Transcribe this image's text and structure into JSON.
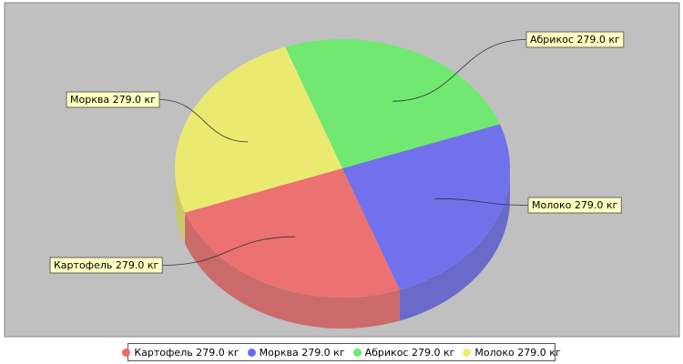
{
  "chart_data": {
    "type": "pie",
    "unit": "кг",
    "slices": [
      {
        "name": "Картофель",
        "value": 279.0,
        "label": "Картофель 279.0 кг",
        "color": "#f06a6a"
      },
      {
        "name": "Морква",
        "value": 279.0,
        "label": "Морква 279.0 кг",
        "color": "#6a6af0"
      },
      {
        "name": "Абрикос",
        "value": 279.0,
        "label": "Абрикос 279.0 кг",
        "color": "#6aeb6a"
      },
      {
        "name": "Молоко",
        "value": 279.0,
        "label": "Молоко 279.0 кг",
        "color": "#eeee6a"
      }
    ],
    "style": "3d",
    "plot_background": "#c0c0c0",
    "label_background": "#ffffc0",
    "legend_position": "bottom"
  }
}
